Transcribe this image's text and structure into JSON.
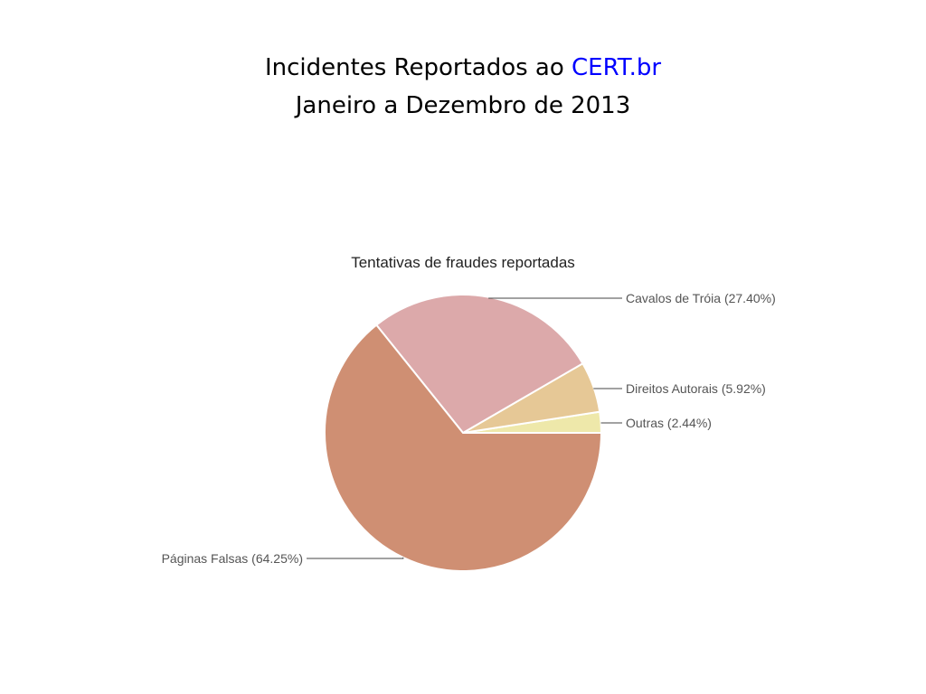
{
  "slide": {
    "title_prefix": "Incidentes Reportados ao ",
    "title_brand": "CERT.br",
    "subtitle": "Janeiro a Dezembro de 2013",
    "brand_color": "#0000ff"
  },
  "chart_data": {
    "type": "pie",
    "title": "Tentativas de fraudes reportadas",
    "start_angle_deg": 0,
    "direction": "counterclockwise",
    "slices": [
      {
        "label": "Outras (2.44%)",
        "name": "Outras",
        "value": 2.44,
        "color": "#eee8aa"
      },
      {
        "label": "Direitos Autorais (5.92%)",
        "name": "Direitos Autorais",
        "value": 5.92,
        "color": "#e6c896"
      },
      {
        "label": "Cavalos de Tróia (27.40%)",
        "name": "Cavalos de Tróia",
        "value": 27.4,
        "color": "#dca9aa"
      },
      {
        "label": "Páginas Falsas (64.25%)",
        "name": "Páginas Falsas",
        "value": 64.25,
        "color": "#cf8f73"
      }
    ]
  }
}
